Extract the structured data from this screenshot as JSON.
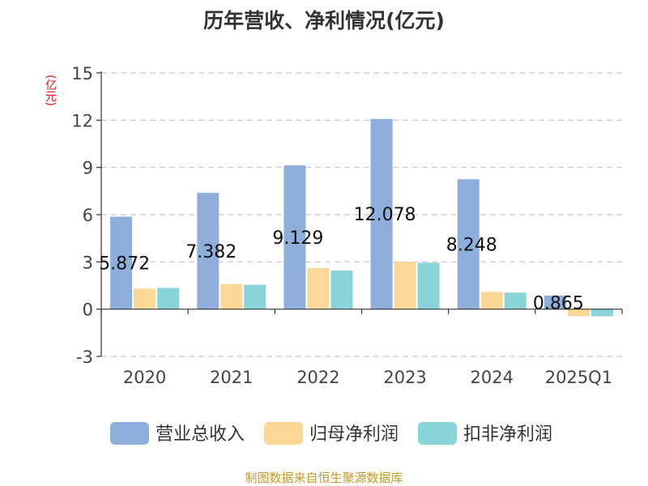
{
  "chart_data": {
    "type": "bar",
    "title": "历年营收、净利情况(亿元)",
    "ylabel": "(亿元)",
    "xlabel": "",
    "categories": [
      "2020",
      "2021",
      "2022",
      "2023",
      "2024",
      "2025Q1"
    ],
    "ylim": [
      -3,
      15
    ],
    "yticks": [
      -3,
      0,
      3,
      6,
      9,
      12,
      15
    ],
    "grid": true,
    "legend_position": "bottom",
    "series": [
      {
        "name": "营业总收入",
        "color": "#8eaedc",
        "values": [
          5.872,
          7.382,
          9.129,
          12.078,
          8.248,
          0.865
        ],
        "labels": [
          "5.872",
          "7.382",
          "9.129",
          "12.078",
          "8.248",
          "0.865"
        ]
      },
      {
        "name": "归母净利润",
        "color": "#fdd795",
        "values": [
          1.3,
          1.6,
          2.6,
          3.0,
          1.1,
          -0.45
        ]
      },
      {
        "name": "扣非净利润",
        "color": "#89d4d8",
        "values": [
          1.35,
          1.55,
          2.45,
          2.95,
          1.05,
          -0.45
        ]
      }
    ]
  },
  "footer": {
    "source": "制图数据来自恒生聚源数据库"
  }
}
